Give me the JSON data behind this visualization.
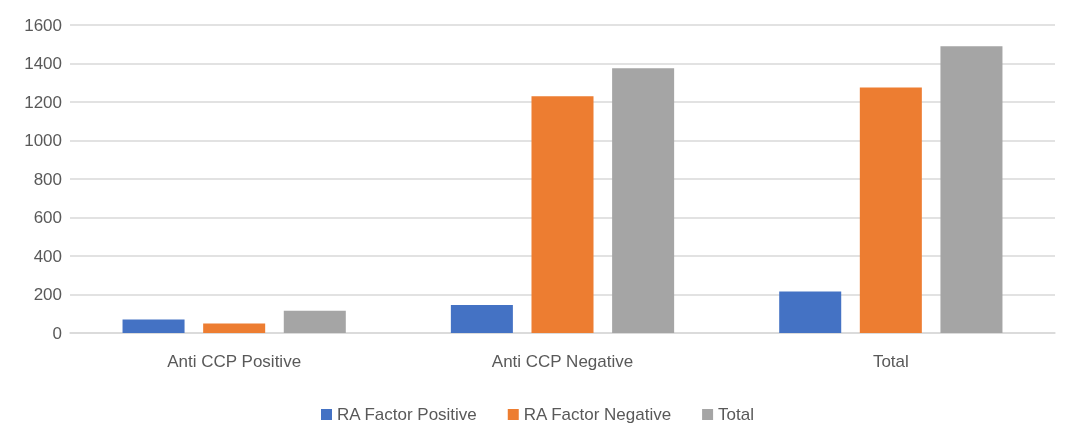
{
  "chart_data": {
    "type": "bar",
    "categories": [
      "Anti CCP Positive",
      "Anti CCP Negative",
      "Total"
    ],
    "series": [
      {
        "name": "RA Factor Positive",
        "color": "#4472c4",
        "values": [
          70,
          145,
          215
        ]
      },
      {
        "name": "RA Factor Negative",
        "color": "#ed7d31",
        "values": [
          50,
          1230,
          1275
        ]
      },
      {
        "name": "Total",
        "color": "#a5a5a5",
        "values": [
          115,
          1375,
          1490
        ]
      }
    ],
    "ylim": [
      0,
      1600
    ],
    "yticks": [
      0,
      200,
      400,
      600,
      800,
      1000,
      1200,
      1400,
      1600
    ],
    "grid": "y",
    "legend": "bottom"
  }
}
